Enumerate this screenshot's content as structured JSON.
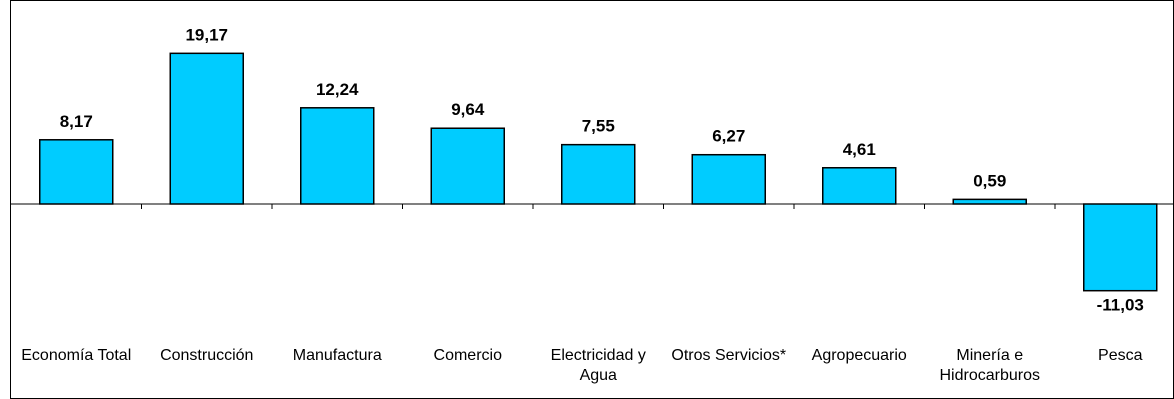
{
  "chart_data": {
    "type": "bar",
    "categories": [
      [
        "Economía Total"
      ],
      [
        "Construcción"
      ],
      [
        "Manufactura"
      ],
      [
        "Comercio"
      ],
      [
        "Electricidad y",
        "Agua"
      ],
      [
        "Otros Servicios*"
      ],
      [
        "Agropecuario"
      ],
      [
        "Minería e",
        "Hidrocarburos"
      ],
      [
        "Pesca"
      ]
    ],
    "values": [
      8.17,
      19.17,
      12.24,
      9.64,
      7.55,
      6.27,
      4.61,
      0.59,
      -11.03
    ],
    "value_labels": [
      "8,17",
      "19,17",
      "12,24",
      "9,64",
      "7,55",
      "6,27",
      "4,61",
      "0,59",
      "-11,03"
    ],
    "title": "",
    "xlabel": "",
    "ylabel": "",
    "grid": false,
    "legend": "none",
    "bar_color": "#00CCFF",
    "bar_outline": "#000000"
  }
}
